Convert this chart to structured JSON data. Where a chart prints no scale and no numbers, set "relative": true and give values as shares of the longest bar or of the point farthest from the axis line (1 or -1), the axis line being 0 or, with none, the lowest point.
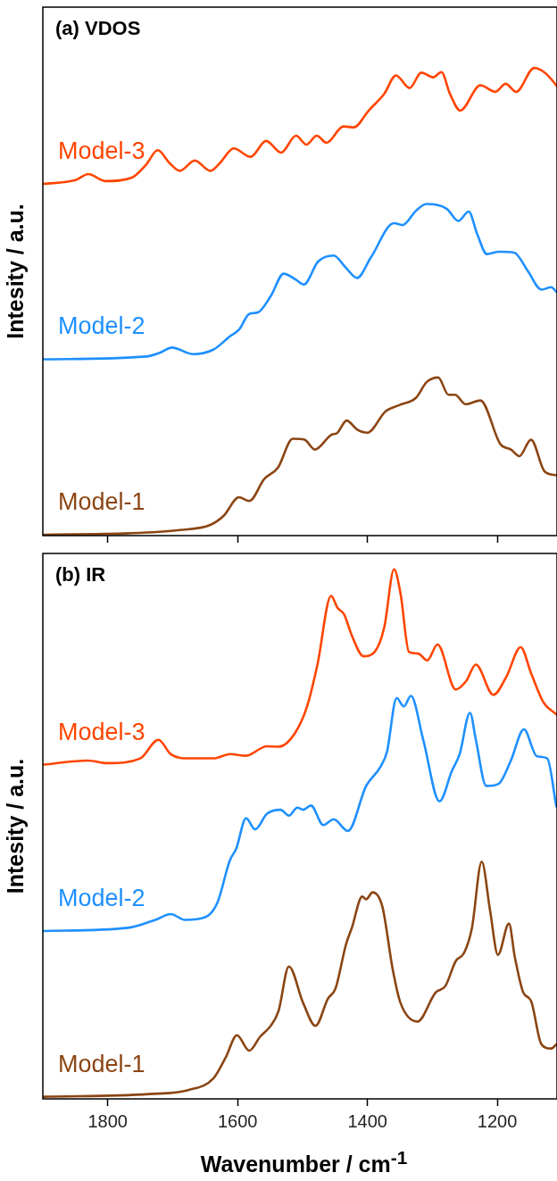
{
  "chart_data": [
    {
      "type": "line",
      "title": "(a) VDOS",
      "ylabel": "Intesity / a.u.",
      "relative": true,
      "xlim": [
        1900,
        1108
      ],
      "xticks": [
        1800,
        1600,
        1400,
        1200
      ],
      "tick_labels": false,
      "grid": false,
      "legend": false,
      "marker": "none",
      "series": [
        {
          "name": "Model-3",
          "color": "#ff4500",
          "x": [
            1900,
            1850,
            1830,
            1804,
            1762,
            1741,
            1723,
            1705,
            1689,
            1666,
            1642,
            1627,
            1606,
            1580,
            1556,
            1533,
            1510,
            1494,
            1478,
            1463,
            1437,
            1421,
            1398,
            1374,
            1356,
            1335,
            1317,
            1299,
            1286,
            1273,
            1257,
            1226,
            1203,
            1187,
            1171,
            1143,
            1125,
            1108
          ],
          "values": [
            0.752,
            0.76,
            0.773,
            0.758,
            0.766,
            0.793,
            0.824,
            0.797,
            0.78,
            0.802,
            0.78,
            0.797,
            0.828,
            0.81,
            0.844,
            0.819,
            0.855,
            0.836,
            0.855,
            0.84,
            0.875,
            0.873,
            0.909,
            0.945,
            0.984,
            0.957,
            0.99,
            0.98,
            0.991,
            0.945,
            0.909,
            0.963,
            0.949,
            0.966,
            0.949,
            1.0,
            0.988,
            0.961
          ]
        },
        {
          "name": "Model-2",
          "color": "#1e90ff",
          "x": [
            1900,
            1741,
            1720,
            1701,
            1668,
            1637,
            1611,
            1598,
            1582,
            1569,
            1549,
            1529,
            1510,
            1498,
            1476,
            1452,
            1434,
            1416,
            1395,
            1359,
            1346,
            1325,
            1309,
            1278,
            1260,
            1244,
            1231,
            1216,
            1197,
            1174,
            1153,
            1132,
            1117,
            1108
          ],
          "values": [
            0.377,
            0.383,
            0.391,
            0.402,
            0.388,
            0.398,
            0.427,
            0.44,
            0.474,
            0.477,
            0.512,
            0.56,
            0.547,
            0.537,
            0.586,
            0.599,
            0.574,
            0.551,
            0.594,
            0.668,
            0.664,
            0.695,
            0.709,
            0.699,
            0.673,
            0.693,
            0.645,
            0.602,
            0.607,
            0.605,
            0.566,
            0.526,
            0.531,
            0.52
          ]
        },
        {
          "name": "Model-1",
          "color": "#8b4513",
          "x": [
            1900,
            1767,
            1689,
            1642,
            1621,
            1598,
            1582,
            1559,
            1538,
            1515,
            1497,
            1481,
            1455,
            1447,
            1432,
            1416,
            1400,
            1372,
            1351,
            1325,
            1309,
            1291,
            1275,
            1265,
            1249,
            1226,
            1195,
            1179,
            1166,
            1148,
            1127,
            1108
          ],
          "values": [
            0.002,
            0.005,
            0.012,
            0.023,
            0.043,
            0.082,
            0.074,
            0.121,
            0.145,
            0.207,
            0.205,
            0.184,
            0.216,
            0.219,
            0.246,
            0.227,
            0.22,
            0.266,
            0.279,
            0.295,
            0.328,
            0.338,
            0.301,
            0.301,
            0.281,
            0.289,
            0.195,
            0.184,
            0.17,
            0.205,
            0.137,
            0.129
          ]
        }
      ]
    },
    {
      "type": "line",
      "title": "(b) IR",
      "xlabel": "Wavenumber / cm$^{-1}$",
      "ylabel": "Intesity / a.u.",
      "relative": true,
      "xlim": [
        1900,
        1108
      ],
      "xticks": [
        1800,
        1600,
        1400,
        1200
      ],
      "tick_labels": "x",
      "grid": false,
      "legend": false,
      "marker": "none",
      "series": [
        {
          "name": "Model-3",
          "color": "#ff4500",
          "x": [
            1900,
            1831,
            1800,
            1750,
            1722,
            1703,
            1675,
            1637,
            1612,
            1587,
            1555,
            1537,
            1512,
            1493,
            1477,
            1456,
            1446,
            1436,
            1424,
            1406,
            1389,
            1374,
            1359,
            1349,
            1336,
            1322,
            1308,
            1292,
            1264,
            1248,
            1233,
            1206,
            1186,
            1164,
            1148,
            1129,
            1109
          ],
          "values": [
            0.631,
            0.639,
            0.634,
            0.643,
            0.678,
            0.651,
            0.643,
            0.643,
            0.651,
            0.648,
            0.666,
            0.665,
            0.69,
            0.741,
            0.82,
            0.95,
            0.927,
            0.915,
            0.875,
            0.836,
            0.844,
            0.891,
            1.0,
            0.954,
            0.844,
            0.841,
            0.828,
            0.858,
            0.773,
            0.789,
            0.82,
            0.763,
            0.797,
            0.853,
            0.804,
            0.749,
            0.726
          ]
        },
        {
          "name": "Model-2",
          "color": "#1e90ff",
          "x": [
            1900,
            1769,
            1725,
            1703,
            1681,
            1650,
            1631,
            1612,
            1602,
            1587,
            1573,
            1555,
            1534,
            1521,
            1508,
            1499,
            1487,
            1468,
            1452,
            1430,
            1402,
            1380,
            1370,
            1355,
            1344,
            1333,
            1314,
            1289,
            1270,
            1258,
            1242,
            1233,
            1217,
            1198,
            1179,
            1159,
            1139,
            1123,
            1109
          ],
          "values": [
            0.317,
            0.323,
            0.339,
            0.349,
            0.338,
            0.343,
            0.371,
            0.45,
            0.473,
            0.53,
            0.509,
            0.538,
            0.546,
            0.535,
            0.55,
            0.546,
            0.554,
            0.517,
            0.528,
            0.506,
            0.591,
            0.627,
            0.655,
            0.757,
            0.741,
            0.761,
            0.678,
            0.562,
            0.619,
            0.651,
            0.729,
            0.678,
            0.591,
            0.595,
            0.639,
            0.698,
            0.647,
            0.643,
            0.552
          ]
        },
        {
          "name": "Model-1",
          "color": "#8b4513",
          "x": [
            1900,
            1737,
            1675,
            1637,
            1618,
            1601,
            1582,
            1565,
            1549,
            1537,
            1521,
            1499,
            1480,
            1461,
            1449,
            1433,
            1424,
            1408,
            1402,
            1392,
            1377,
            1361,
            1349,
            1323,
            1295,
            1280,
            1264,
            1251,
            1239,
            1224,
            1211,
            1199,
            1182,
            1173,
            1160,
            1148,
            1132,
            1117,
            1109
          ],
          "values": [
            0.004,
            0.009,
            0.017,
            0.039,
            0.079,
            0.12,
            0.091,
            0.118,
            0.138,
            0.166,
            0.25,
            0.181,
            0.138,
            0.189,
            0.209,
            0.292,
            0.323,
            0.382,
            0.377,
            0.39,
            0.363,
            0.244,
            0.181,
            0.146,
            0.201,
            0.213,
            0.26,
            0.276,
            0.323,
            0.448,
            0.355,
            0.272,
            0.331,
            0.268,
            0.201,
            0.185,
            0.103,
            0.095,
            0.103
          ]
        }
      ]
    }
  ]
}
